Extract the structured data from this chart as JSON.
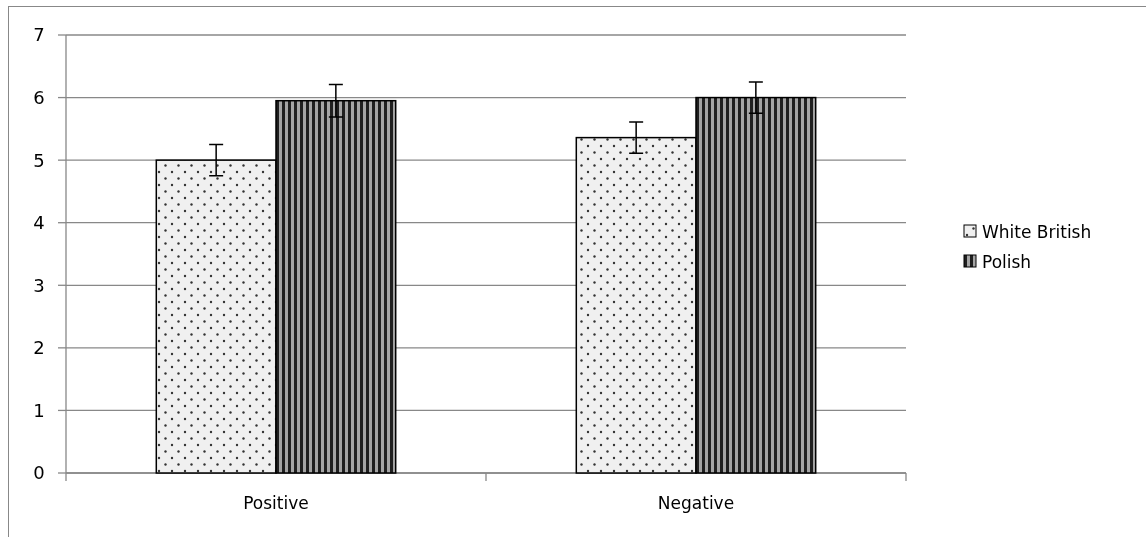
{
  "chart_data": {
    "type": "bar",
    "categories": [
      "Positive",
      "Negative"
    ],
    "series": [
      {
        "name": "White British",
        "color": "#f0f0f0",
        "values": [
          5.0,
          5.36
        ],
        "errors": [
          0.25,
          0.25
        ]
      },
      {
        "name": "Polish",
        "color": "#404040",
        "values": [
          5.95,
          6.0
        ],
        "errors": [
          0.26,
          0.25
        ]
      }
    ],
    "ylim": [
      0,
      7
    ],
    "yticks": [
      0,
      1,
      2,
      3,
      4,
      5,
      6,
      7
    ],
    "grid": "y",
    "legend": "right"
  }
}
